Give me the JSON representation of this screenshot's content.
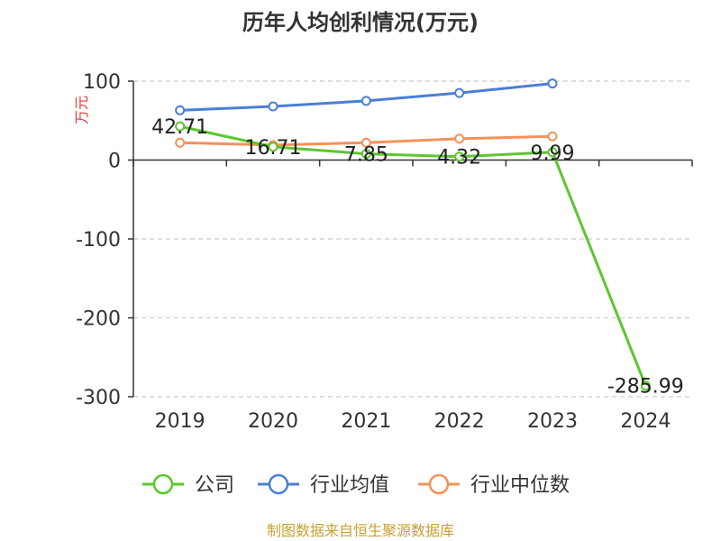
{
  "chart_data": {
    "type": "line",
    "title": "历年人均创利情况(万元)",
    "ylabel": "万元",
    "categories": [
      "2019",
      "2020",
      "2021",
      "2022",
      "2023",
      "2024"
    ],
    "ylim": [
      -300,
      100
    ],
    "yticks": [
      100,
      0,
      -100,
      -200,
      -300
    ],
    "grid": true,
    "legend_placement": "bottom",
    "series": [
      {
        "name": "公司",
        "values": [
          42.71,
          16.71,
          7.85,
          4.32,
          9.99,
          -285.99
        ],
        "color": "#5cc62e",
        "data_labels": [
          "42.71",
          "16.71",
          "7.85",
          "4.32",
          "9.99",
          "-285.99"
        ]
      },
      {
        "name": "行业均值",
        "values": [
          63,
          68,
          75,
          85,
          97,
          null
        ],
        "color": "#4a7fd6"
      },
      {
        "name": "行业中位数",
        "values": [
          22,
          19,
          22,
          27,
          30,
          null
        ],
        "color": "#f5915a"
      }
    ]
  },
  "colors": {
    "ylabel": "#e23b3b",
    "source": "#c8a02e",
    "axis": "#333333",
    "grid": "#cccccc"
  },
  "source_text": "制图数据来自恒生聚源数据库"
}
